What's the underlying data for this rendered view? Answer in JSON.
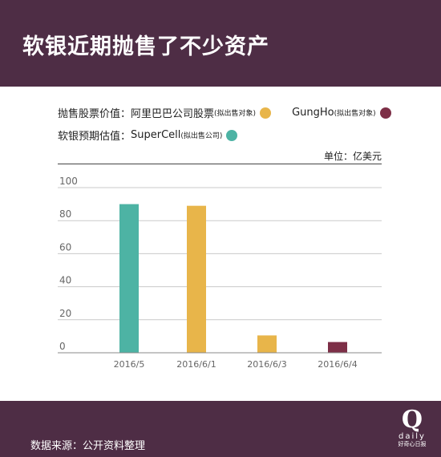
{
  "header": {
    "title": "软银近期抛售了不少资产"
  },
  "legend": {
    "row1_prefix": "抛售股票价值：",
    "row2_prefix": "软银预期估值：",
    "items": [
      {
        "label": "阿里巴巴公司股票",
        "note": "(拟出售对象)",
        "color": "#e8b54a"
      },
      {
        "label": "GungHo",
        "note": "(拟出售对象)",
        "color": "#7d2f47"
      },
      {
        "label": "SuperCell",
        "note": "(拟出售公司)",
        "color": "#4db3a4"
      }
    ]
  },
  "unit": "单位：亿美元",
  "footer": {
    "source": "数据来源：公开资料整理",
    "logo_mark": "Q",
    "logo_word": "daily",
    "logo_sub": "好奇心日报"
  },
  "chart_data": {
    "type": "bar",
    "categories": [
      "2016/5",
      "2016/6/1",
      "2016/6/3",
      "2016/6/4"
    ],
    "values": [
      90,
      89,
      10.5,
      6.5
    ],
    "colors": [
      "#4db3a4",
      "#e8b54a",
      "#e8b54a",
      "#7d2f47"
    ],
    "ylim": [
      0,
      100
    ],
    "yticks": [
      0,
      20,
      40,
      60,
      80,
      100
    ],
    "grid": true
  }
}
